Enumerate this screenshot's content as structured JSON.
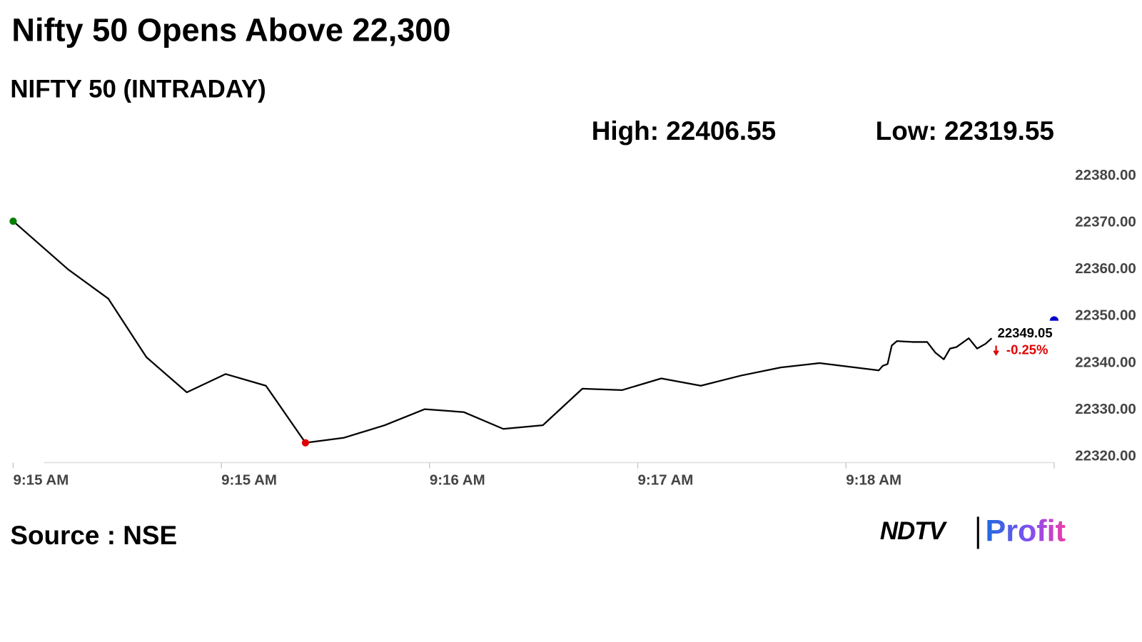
{
  "chart_data": {
    "type": "line",
    "title": "Nifty 50 Opens Above 22,300",
    "subtitle": "NIFTY 50 (INTRADAY)",
    "high_label": "High:",
    "high": 22406.55,
    "low_label": "Low:",
    "low": 22319.55,
    "x": [
      0,
      0.264,
      0.457,
      0.64,
      0.834,
      1.02,
      1.214,
      1.404,
      1.59,
      1.784,
      1.977,
      2.164,
      2.354,
      2.544,
      2.734,
      2.924,
      3.113,
      3.303,
      3.497,
      3.687,
      3.873,
      4.158,
      4.176,
      4.2,
      4.22,
      4.245,
      4.32,
      4.39,
      4.43,
      4.47,
      4.5,
      4.53,
      4.59,
      4.63,
      4.67,
      4.7
    ],
    "values": [
      22370.3,
      22360.0,
      22353.75,
      22341.25,
      22333.75,
      22337.66,
      22335.16,
      22322.97,
      22324.06,
      22326.72,
      22330.16,
      22329.53,
      22325.94,
      22326.72,
      22334.53,
      22334.22,
      22336.72,
      22335.16,
      22337.34,
      22339.06,
      22340.0,
      22338.44,
      22339.4,
      22339.8,
      22343.75,
      22344.7,
      22344.5,
      22344.5,
      22342.2,
      22340.8,
      22343.1,
      22343.4,
      22345.3,
      22343.1,
      22344.1,
      22345.3
    ],
    "color": "#000000",
    "start_color": "#008000",
    "low_color": "#e00000",
    "last": {
      "x": 5,
      "value": 22349.05,
      "change": -0.25,
      "change_label": "-0.25%",
      "color": "#0000cc",
      "change_color": "#e00000"
    },
    "xlim": [
      0,
      5
    ],
    "xticks": [
      {
        "value": 0,
        "label": "9:15 AM"
      },
      {
        "value": 1,
        "label": "9:15 AM"
      },
      {
        "value": 2,
        "label": "9:16 AM"
      },
      {
        "value": 3,
        "label": "9:17 AM"
      },
      {
        "value": 4,
        "label": "9:18 AM"
      },
      {
        "value": 5,
        "label": ""
      }
    ],
    "ylim": [
      22318.75,
      22380
    ],
    "yticks": [
      {
        "value": 22320,
        "label": "22320.00"
      },
      {
        "value": 22330,
        "label": "22330.00"
      },
      {
        "value": 22340,
        "label": "22340.00"
      },
      {
        "value": 22350,
        "label": "22350.00"
      },
      {
        "value": 22360,
        "label": "22360.00"
      },
      {
        "value": 22370,
        "label": "22370.00"
      },
      {
        "value": 22380,
        "label": "22380.00"
      }
    ],
    "source": "Source : NSE",
    "logo": {
      "brand": "NDTV",
      "product": "Profit"
    }
  }
}
